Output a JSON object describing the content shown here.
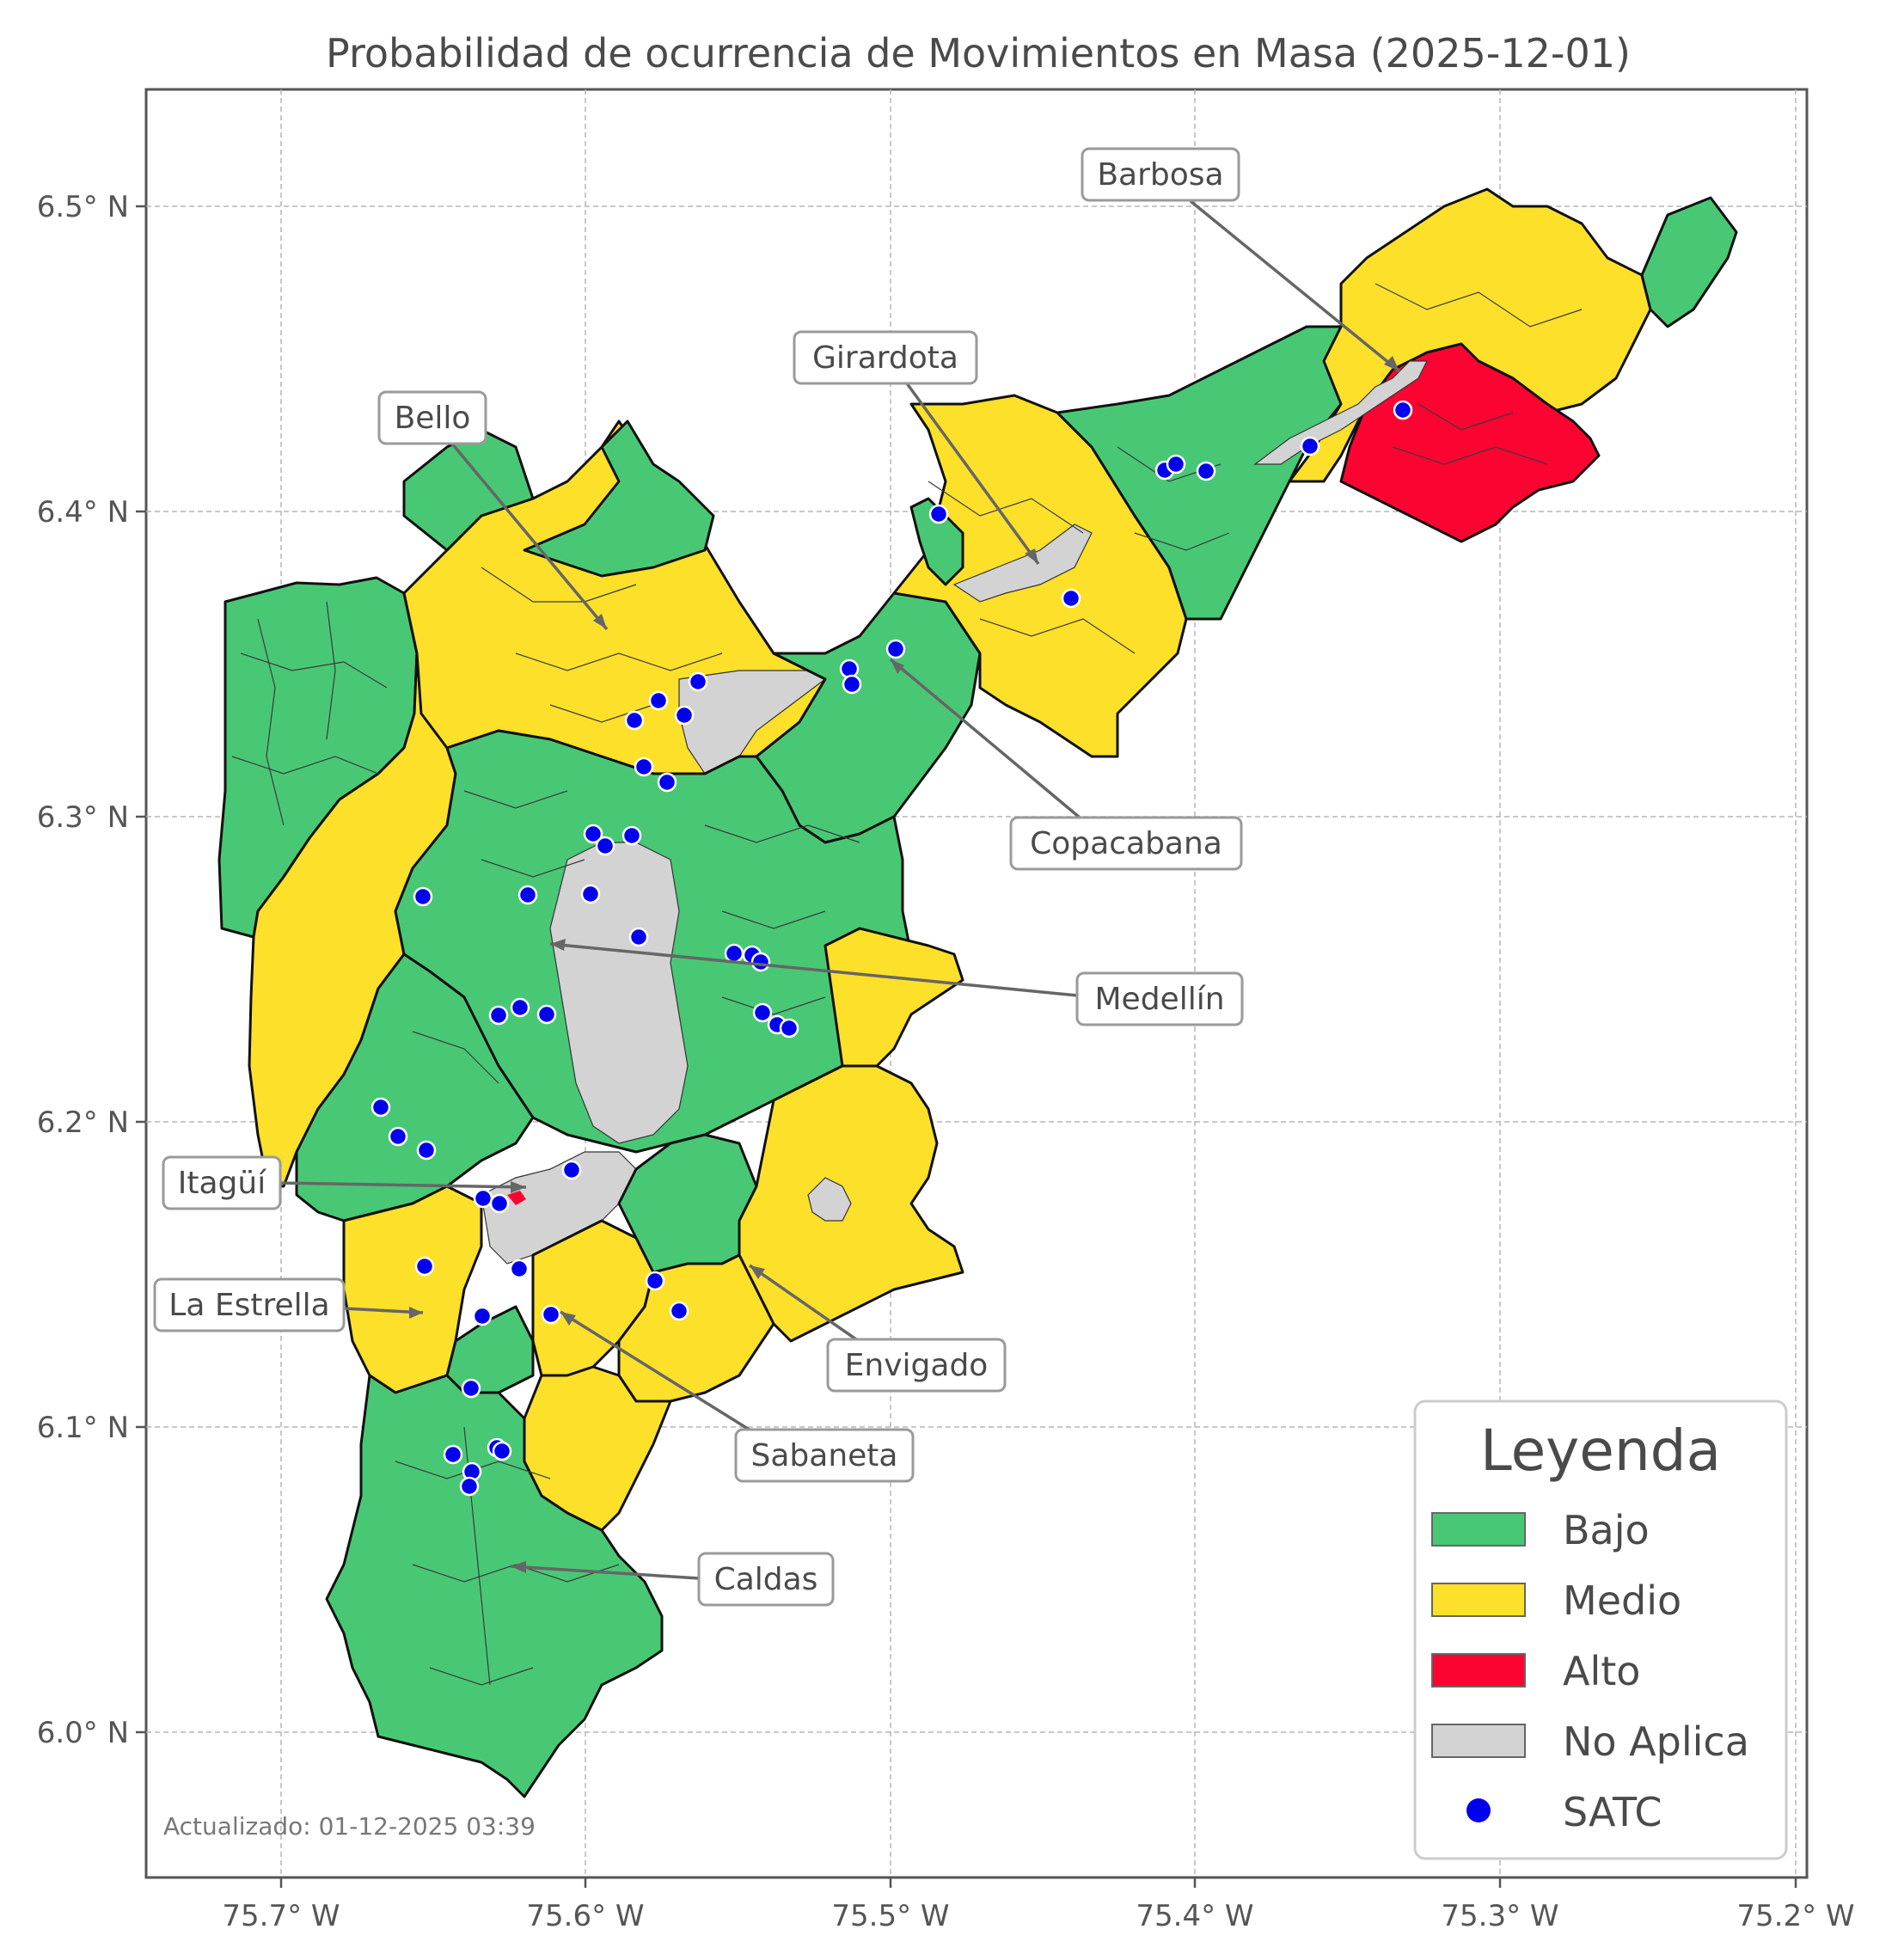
{
  "title": "Probabilidad de ocurrencia de Movimientos en Masa (2025-12-01)",
  "updated": "Actualizado: 01-12-2025 03:39",
  "axes": {
    "x_ticks": [
      "75.7° W",
      "75.6° W",
      "75.5° W",
      "75.4° W",
      "75.3° W",
      "75.2° W"
    ],
    "y_ticks": [
      "6.5° N",
      "6.4° N",
      "6.3° N",
      "6.2° N",
      "6.1° N",
      "6.0° N"
    ]
  },
  "legend": {
    "title": "Leyenda",
    "items": [
      {
        "label": "Bajo",
        "color": "#48c875",
        "kind": "patch"
      },
      {
        "label": "Medio",
        "color": "#fde02a",
        "kind": "patch"
      },
      {
        "label": "Alto",
        "color": "#fb0431",
        "kind": "patch"
      },
      {
        "label": "No Aplica",
        "color": "#d3d3d3",
        "kind": "patch"
      },
      {
        "label": "SATC",
        "color": "#0000ee",
        "kind": "marker"
      }
    ]
  },
  "municipalities": [
    {
      "name": "Barbosa"
    },
    {
      "name": "Girardota"
    },
    {
      "name": "Bello"
    },
    {
      "name": "Copacabana"
    },
    {
      "name": "Medellín"
    },
    {
      "name": "Itagüí"
    },
    {
      "name": "La Estrella"
    },
    {
      "name": "Envigado"
    },
    {
      "name": "Sabaneta"
    },
    {
      "name": "Caldas"
    }
  ],
  "colors": {
    "bajo": "#48c875",
    "medio": "#fde02a",
    "alto": "#fb0431",
    "no_aplica": "#d3d3d3",
    "satc": "#0000ee"
  }
}
